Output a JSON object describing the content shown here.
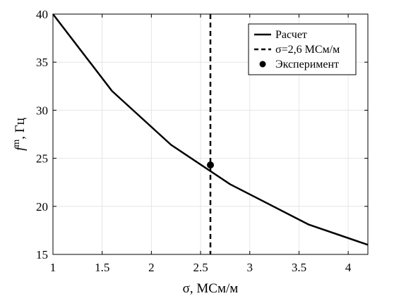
{
  "chart_data": {
    "type": "line",
    "xlabel": "σ, МСм/м",
    "ylabel": {
      "main": "f",
      "sub": "m",
      "rest": ", Гц"
    },
    "xlim": [
      1,
      4.2
    ],
    "ylim": [
      15,
      40
    ],
    "xticks": [
      1,
      1.5,
      2,
      2.5,
      3,
      3.5,
      4
    ],
    "xtick_labels": [
      "1",
      "1.5",
      "2",
      "2.5",
      "3",
      "3.5",
      "4"
    ],
    "yticks": [
      15,
      20,
      25,
      30,
      35,
      40
    ],
    "ytick_labels": [
      "15",
      "20",
      "25",
      "30",
      "35",
      "40"
    ],
    "grid": true,
    "legend_position": "top-right",
    "series": [
      {
        "name": "Расчет",
        "style": "solid",
        "color": "#000000",
        "x": [
          1.0,
          1.6,
          2.2,
          2.8,
          3.6,
          4.2
        ],
        "y": [
          40.0,
          32.0,
          26.4,
          22.3,
          18.1,
          16.0
        ]
      },
      {
        "name": "σ=2,6 МСм/м",
        "style": "dashed",
        "color": "#000000",
        "vline_x": 2.6
      },
      {
        "name": "Эксперимент",
        "style": "marker",
        "color": "#000000",
        "x": [
          2.6
        ],
        "y": [
          24.3
        ]
      }
    ]
  }
}
